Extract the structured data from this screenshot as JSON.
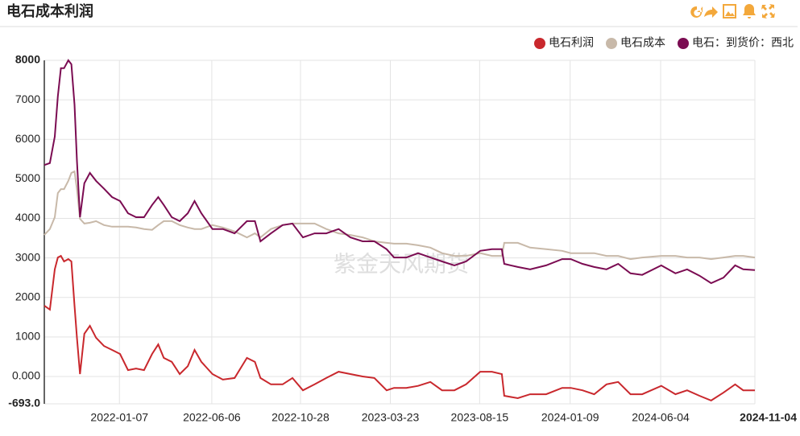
{
  "chart_data": {
    "type": "line",
    "title": "电石成本利润",
    "watermark": "紫金天风期货",
    "legend": "top-right",
    "grid": true,
    "xlim": [
      "2021-09-07",
      "2024-11-04"
    ],
    "xticks": [
      "2022-01-07",
      "2022-06-06",
      "2022-10-28",
      "2023-03-23",
      "2023-08-15",
      "2024-01-09",
      "2024-06-04",
      "2024-11-04"
    ],
    "ylim": [
      -693,
      8000
    ],
    "yticks": [
      {
        "value": -693,
        "label": "-693.0"
      },
      {
        "value": 0,
        "label": "0.000"
      },
      1000,
      2000,
      3000,
      4000,
      5000,
      6000,
      7000,
      8000
    ],
    "x": [
      "2021-09-07",
      "2021-09-16",
      "2021-09-24",
      "2021-09-29",
      "2021-10-04",
      "2021-10-09",
      "2021-10-16",
      "2021-10-21",
      "2021-10-26",
      "2021-10-30",
      "2021-11-04",
      "2021-11-11",
      "2021-11-20",
      "2021-11-30",
      "2021-12-13",
      "2021-12-26",
      "2022-01-08",
      "2022-01-21",
      "2022-02-03",
      "2022-02-16",
      "2022-03-01",
      "2022-03-11",
      "2022-03-20",
      "2022-04-02",
      "2022-04-15",
      "2022-04-28",
      "2022-05-09",
      "2022-05-20",
      "2022-06-07",
      "2022-06-24",
      "2022-07-13",
      "2022-08-02",
      "2022-08-15",
      "2022-08-24",
      "2022-09-10",
      "2022-09-29",
      "2022-10-15",
      "2022-11-01",
      "2022-11-20",
      "2022-12-09",
      "2022-12-29",
      "2023-01-17",
      "2023-02-06",
      "2023-02-25",
      "2023-03-17",
      "2023-03-29",
      "2023-04-18",
      "2023-05-07",
      "2023-05-27",
      "2023-06-15",
      "2023-07-05",
      "2023-07-24",
      "2023-08-16",
      "2023-09-04",
      "2023-09-20",
      "2023-09-24",
      "2023-10-16",
      "2023-11-05",
      "2023-12-01",
      "2023-12-27",
      "2024-01-10",
      "2024-01-29",
      "2024-02-17",
      "2024-03-08",
      "2024-03-27",
      "2024-04-16",
      "2024-05-05",
      "2024-06-05",
      "2024-06-28",
      "2024-07-17",
      "2024-08-06",
      "2024-08-25",
      "2024-09-14",
      "2024-10-03",
      "2024-10-16",
      "2024-11-04"
    ],
    "series": [
      {
        "name": "电石利润",
        "color": "#c9282d",
        "values": [
          1790,
          1690,
          2710,
          3010,
          3050,
          2910,
          2970,
          2910,
          1790,
          980,
          60,
          1080,
          1280,
          980,
          770,
          670,
          570,
          160,
          200,
          160,
          570,
          810,
          470,
          370,
          60,
          260,
          670,
          370,
          60,
          -80,
          -40,
          470,
          370,
          -40,
          -200,
          -200,
          -40,
          -350,
          -200,
          -40,
          120,
          60,
          0,
          -40,
          -350,
          -290,
          -290,
          -240,
          -140,
          -350,
          -350,
          -200,
          120,
          120,
          60,
          -490,
          -550,
          -450,
          -450,
          -290,
          -290,
          -350,
          -450,
          -200,
          -140,
          -450,
          -450,
          -240,
          -450,
          -350,
          -490,
          -610,
          -410,
          -200,
          -350,
          -350
        ]
      },
      {
        "name": "电石成本",
        "color": "#c8b9a9",
        "values": [
          3580,
          3730,
          4030,
          4640,
          4740,
          4740,
          4950,
          5150,
          5190,
          4740,
          3990,
          3870,
          3890,
          3930,
          3830,
          3790,
          3790,
          3790,
          3770,
          3730,
          3710,
          3830,
          3930,
          3930,
          3830,
          3770,
          3730,
          3730,
          3830,
          3770,
          3670,
          3520,
          3620,
          3520,
          3730,
          3830,
          3870,
          3870,
          3870,
          3730,
          3620,
          3580,
          3520,
          3420,
          3380,
          3360,
          3360,
          3320,
          3260,
          3120,
          3050,
          3050,
          3120,
          3050,
          3050,
          3380,
          3380,
          3260,
          3220,
          3180,
          3120,
          3120,
          3120,
          3050,
          3050,
          2970,
          3010,
          3050,
          3050,
          3010,
          3010,
          2970,
          3010,
          3050,
          3050,
          3010
        ]
      },
      {
        "name": "电石：到货价：西北",
        "color": "#7b0c52",
        "values": [
          5350,
          5400,
          6070,
          7090,
          7800,
          7800,
          8000,
          7900,
          6880,
          5460,
          4030,
          4890,
          5150,
          4950,
          4750,
          4540,
          4440,
          4130,
          4030,
          4030,
          4340,
          4540,
          4340,
          4030,
          3930,
          4130,
          4440,
          4130,
          3730,
          3730,
          3620,
          3930,
          3930,
          3420,
          3620,
          3830,
          3870,
          3520,
          3620,
          3620,
          3730,
          3520,
          3420,
          3420,
          3220,
          3010,
          3010,
          3120,
          3010,
          2910,
          2810,
          2910,
          3180,
          3220,
          3220,
          2850,
          2770,
          2710,
          2810,
          2970,
          2970,
          2850,
          2770,
          2710,
          2850,
          2610,
          2570,
          2810,
          2610,
          2710,
          2550,
          2360,
          2500,
          2810,
          2710,
          2690
        ]
      }
    ]
  }
}
